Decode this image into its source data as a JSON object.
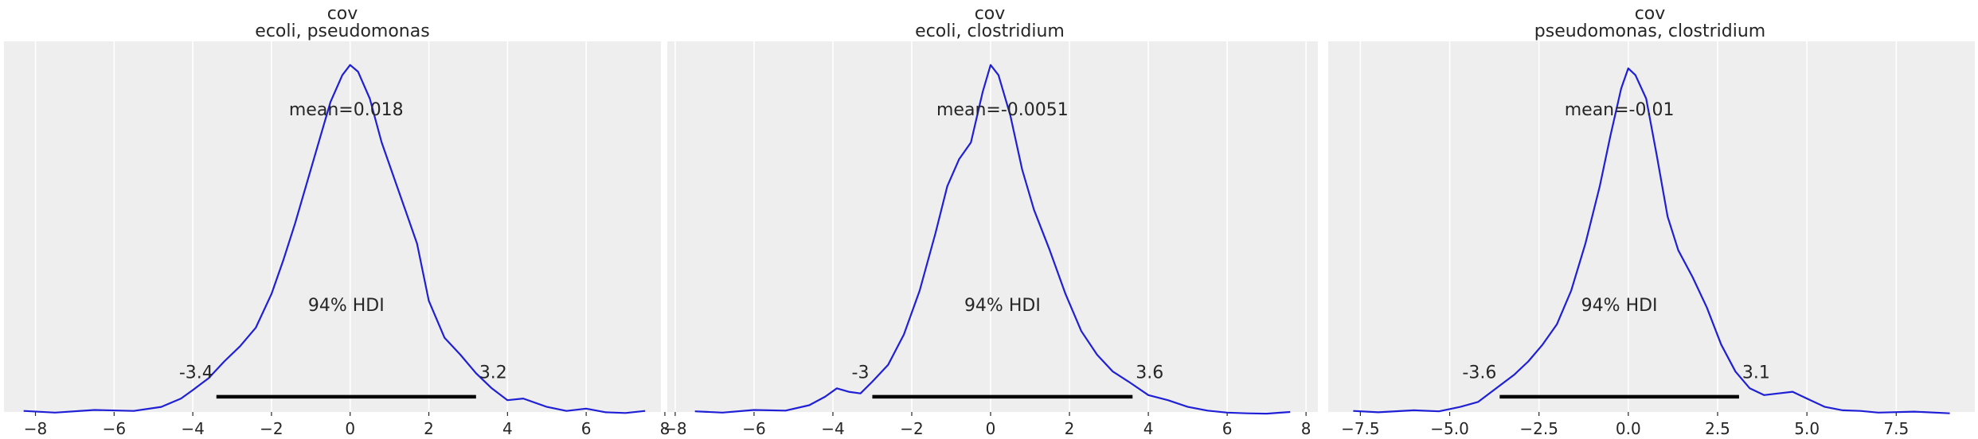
{
  "figure": {
    "background": "#ffffff",
    "axes_facecolor": "#eeeeee",
    "grid_color": "#ffffff",
    "curve_color": "#1f1fd6",
    "hdi_color": "#000000",
    "text_color": "#262626"
  },
  "chart_data": [
    {
      "type": "line",
      "title_lines": [
        "cov",
        "ecoli, pseudomonas"
      ],
      "mean_label": "mean=0.018",
      "hdi_label": "94% HDI",
      "hdi": [
        -3.4,
        3.2
      ],
      "hdi_labels": [
        "-3.4",
        "3.2"
      ],
      "xlim": [
        -8.8,
        7.9
      ],
      "ylim": [
        0,
        1.1
      ],
      "xticks": [
        -8,
        -6,
        -4,
        -2,
        0,
        2,
        4,
        6,
        8
      ],
      "xtick_labels": [
        "−8",
        "−6",
        "−4",
        "−2",
        "0",
        "2",
        "4",
        "6",
        "8"
      ],
      "grid": true,
      "x": [
        -8.3,
        -7.5,
        -6.5,
        -5.5,
        -4.8,
        -4.3,
        -4.0,
        -3.6,
        -3.2,
        -2.8,
        -2.4,
        -2.0,
        -1.7,
        -1.4,
        -1.1,
        -0.8,
        -0.5,
        -0.2,
        0.0,
        0.2,
        0.5,
        0.8,
        1.1,
        1.4,
        1.7,
        2.0,
        2.4,
        2.8,
        3.2,
        3.6,
        4.0,
        4.4,
        5.0,
        5.5,
        6.0,
        6.5,
        7.0,
        7.5
      ],
      "y": [
        0.003,
        -0.002,
        0.006,
        0.003,
        0.015,
        0.04,
        0.065,
        0.1,
        0.15,
        0.195,
        0.25,
        0.35,
        0.45,
        0.56,
        0.68,
        0.8,
        0.92,
        1.0,
        1.03,
        1.01,
        0.93,
        0.8,
        0.7,
        0.6,
        0.5,
        0.33,
        0.22,
        0.17,
        0.115,
        0.07,
        0.035,
        0.04,
        0.015,
        0.003,
        0.01,
        -0.001,
        -0.003,
        0.003
      ]
    },
    {
      "type": "line",
      "title_lines": [
        "cov",
        "ecoli, clostridium"
      ],
      "mean_label": "mean=-0.0051",
      "hdi_label": "94% HDI",
      "hdi": [
        -3.0,
        3.6
      ],
      "hdi_labels": [
        "-3",
        "3.6"
      ],
      "xlim": [
        -8.2,
        8.3
      ],
      "ylim": [
        0,
        1.1
      ],
      "xticks": [
        -8,
        -6,
        -4,
        -2,
        0,
        2,
        4,
        6,
        8
      ],
      "xtick_labels": [
        "−8",
        "−6",
        "−4",
        "−2",
        "0",
        "2",
        "4",
        "6",
        "8"
      ],
      "grid": true,
      "x": [
        -7.5,
        -6.8,
        -6.0,
        -5.2,
        -4.6,
        -4.2,
        -3.9,
        -3.6,
        -3.3,
        -3.0,
        -2.6,
        -2.2,
        -1.8,
        -1.4,
        -1.1,
        -0.8,
        -0.5,
        -0.2,
        0.0,
        0.2,
        0.5,
        0.8,
        1.1,
        1.5,
        1.9,
        2.3,
        2.7,
        3.1,
        3.5,
        4.0,
        4.5,
        5.0,
        5.5,
        6.0,
        6.5,
        7.0,
        7.6
      ],
      "y": [
        0.002,
        -0.002,
        0.006,
        0.004,
        0.02,
        0.045,
        0.07,
        0.06,
        0.055,
        0.09,
        0.14,
        0.23,
        0.36,
        0.53,
        0.67,
        0.75,
        0.8,
        0.95,
        1.03,
        1.0,
        0.88,
        0.72,
        0.6,
        0.48,
        0.35,
        0.24,
        0.17,
        0.12,
        0.09,
        0.05,
        0.035,
        0.015,
        0.004,
        -0.002,
        -0.004,
        -0.005,
        0.0
      ]
    },
    {
      "type": "line",
      "title_lines": [
        "cov",
        "pseudomonas, clostridium"
      ],
      "mean_label": "mean=-0.01",
      "hdi_label": "94% HDI",
      "hdi": [
        -3.6,
        3.1
      ],
      "hdi_labels": [
        "-3.6",
        "3.1"
      ],
      "xlim": [
        -8.4,
        9.7
      ],
      "ylim": [
        0,
        1.1
      ],
      "xticks": [
        -7.5,
        -5.0,
        -2.5,
        0.0,
        2.5,
        5.0,
        7.5
      ],
      "xtick_labels": [
        "−7.5",
        "−5.0",
        "−2.5",
        "0.0",
        "2.5",
        "5.0",
        "7.5"
      ],
      "grid": true,
      "x": [
        -7.7,
        -7.0,
        -6.0,
        -5.3,
        -4.7,
        -4.2,
        -3.7,
        -3.2,
        -2.8,
        -2.4,
        -2.0,
        -1.6,
        -1.2,
        -0.8,
        -0.5,
        -0.2,
        0.0,
        0.2,
        0.5,
        0.8,
        1.1,
        1.4,
        1.8,
        2.2,
        2.6,
        3.0,
        3.4,
        3.8,
        4.2,
        4.6,
        5.0,
        5.5,
        6.0,
        6.5,
        7.0,
        8.0,
        9.0
      ],
      "y": [
        0.003,
        -0.001,
        0.005,
        0.002,
        0.015,
        0.03,
        0.07,
        0.11,
        0.15,
        0.2,
        0.26,
        0.36,
        0.5,
        0.67,
        0.82,
        0.96,
        1.02,
        1.0,
        0.93,
        0.76,
        0.58,
        0.48,
        0.4,
        0.31,
        0.2,
        0.12,
        0.07,
        0.05,
        0.055,
        0.06,
        0.04,
        0.015,
        0.005,
        0.003,
        -0.002,
        0.001,
        -0.004
      ]
    }
  ]
}
